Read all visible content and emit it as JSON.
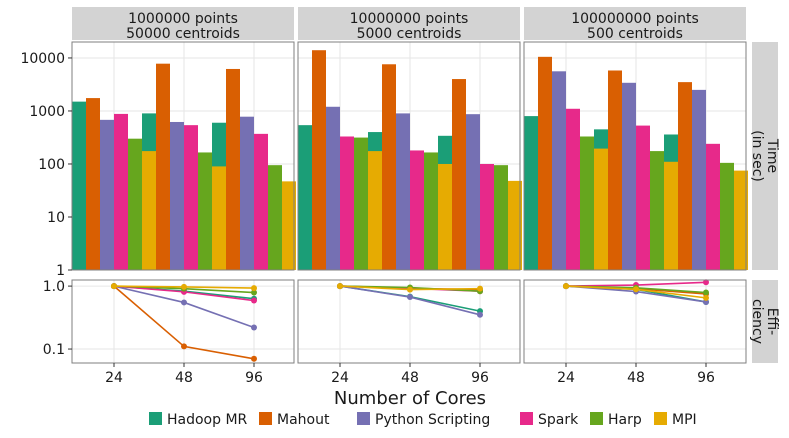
{
  "chart_data": {
    "type": "bar",
    "xlabel": "Number of Cores",
    "categories": [
      "24",
      "48",
      "96"
    ],
    "panels": [
      {
        "title_line1": "1000000 points",
        "title_line2": "50000 centroids"
      },
      {
        "title_line1": "10000000 points",
        "title_line2": "5000 centroids"
      },
      {
        "title_line1": "100000000 points",
        "title_line2": "500 centroids"
      }
    ],
    "rows": [
      {
        "label_line1": "Time",
        "label_line2": "(in sec)",
        "scale": "log",
        "ylim": [
          1,
          20000
        ],
        "ticks": [
          1,
          10,
          100,
          1000,
          10000
        ],
        "tick_labels": [
          "1",
          "10",
          "100",
          "1000",
          "10000"
        ]
      },
      {
        "label_line1": "Effi-",
        "label_line2": "ciency",
        "scale": "log",
        "ylim": [
          0.06,
          1.25
        ],
        "ticks": [
          0.1,
          1.0
        ],
        "tick_labels": [
          "0.1",
          "1.0"
        ]
      }
    ],
    "series": [
      {
        "name": "Hadoop MR",
        "color": "#1b9e77",
        "time": [
          [
            1500,
            900,
            600
          ],
          [
            540,
            400,
            340
          ],
          [
            800,
            450,
            360
          ]
        ],
        "efficiency": [
          [
            1.0,
            0.83,
            0.63
          ],
          [
            1.0,
            0.68,
            0.4
          ],
          [
            1.0,
            0.89,
            0.56
          ]
        ]
      },
      {
        "name": "Mahout",
        "color": "#d95f02",
        "time": [
          [
            1750,
            7800,
            6200
          ],
          [
            14000,
            7600,
            4000
          ],
          [
            10500,
            5800,
            3500
          ]
        ],
        "efficiency": [
          [
            1.0,
            0.11,
            0.07
          ],
          [
            1.0,
            0.92,
            0.88
          ],
          [
            1.0,
            0.91,
            0.75
          ]
        ]
      },
      {
        "name": "Python Scripting",
        "color": "#7570b3",
        "time": [
          [
            680,
            620,
            780
          ],
          [
            1200,
            900,
            870
          ],
          [
            5600,
            3400,
            2500
          ]
        ],
        "efficiency": [
          [
            1.0,
            0.55,
            0.22
          ],
          [
            1.0,
            0.67,
            0.35
          ],
          [
            1.0,
            0.82,
            0.56
          ]
        ]
      },
      {
        "name": "Spark",
        "color": "#e7298a",
        "time": [
          [
            880,
            540,
            370
          ],
          [
            330,
            180,
            100
          ],
          [
            1100,
            530,
            240
          ]
        ],
        "efficiency": [
          [
            1.0,
            0.81,
            0.59
          ],
          [
            1.0,
            0.92,
            0.83
          ],
          [
            1.0,
            1.04,
            1.15
          ]
        ]
      },
      {
        "name": "Harp",
        "color": "#66a61e",
        "time": [
          [
            300,
            165,
            95
          ],
          [
            315,
            165,
            95
          ],
          [
            330,
            175,
            105
          ]
        ],
        "efficiency": [
          [
            1.0,
            0.91,
            0.79
          ],
          [
            1.0,
            0.95,
            0.83
          ],
          [
            1.0,
            0.94,
            0.79
          ]
        ]
      },
      {
        "name": "MPI",
        "color": "#e6ab02",
        "time": [
          [
            175,
            90,
            47
          ],
          [
            175,
            100,
            48
          ],
          [
            195,
            110,
            75
          ]
        ],
        "efficiency": [
          [
            1.0,
            0.97,
            0.93
          ],
          [
            1.0,
            0.88,
            0.91
          ],
          [
            1.0,
            0.89,
            0.65
          ]
        ]
      }
    ],
    "grid": true,
    "legend_position": "bottom"
  },
  "colors": {
    "panel_bg": "#ffffff",
    "strip_bg": "#d3d3d3",
    "grid": "#e6e6e6",
    "frame": "#7f7f7f"
  }
}
